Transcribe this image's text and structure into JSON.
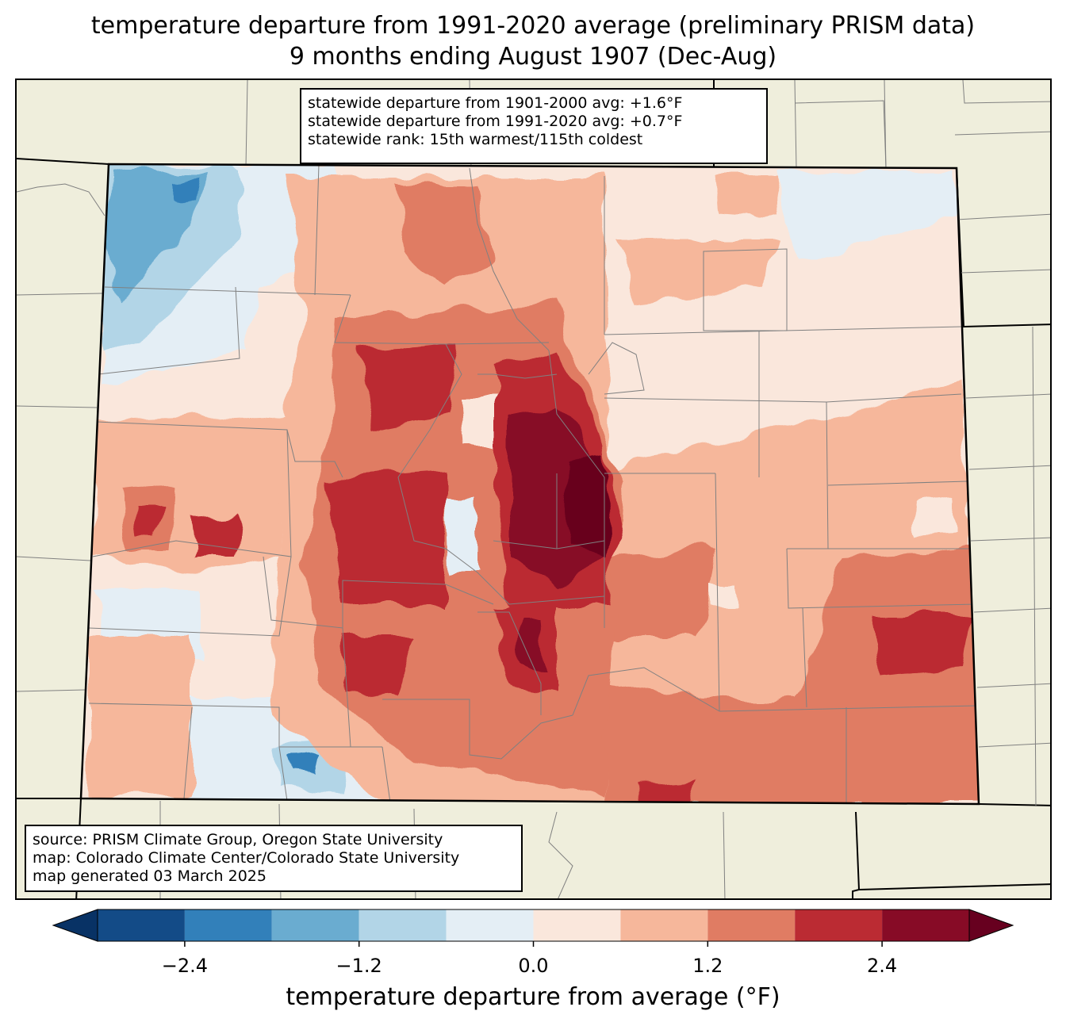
{
  "title": {
    "line1": "temperature departure from 1991-2020 average (preliminary PRISM data)",
    "line2": "9 months ending August 1907 (Dec-Aug)"
  },
  "stats": {
    "line1": "statewide departure from 1901-2000 avg: +1.6°F",
    "line2": "statewide departure from 1991-2020 avg: +0.7°F",
    "line3": "statewide rank: 15th warmest/115th coldest"
  },
  "source": {
    "line1": "source: PRISM Climate Group, Oregon State University",
    "line2": "map: Colorado Climate Center/Colorado State University",
    "line3": "map generated 03 March 2025"
  },
  "colorbar": {
    "label": "temperature departure from average (°F)",
    "bins": [
      -3.0,
      -2.4,
      -1.8,
      -1.2,
      -0.6,
      0.0,
      0.6,
      1.2,
      1.8,
      2.4,
      3.0
    ],
    "colors": [
      "#134b87",
      "#3280ba",
      "#6aacd0",
      "#b2d5e7",
      "#e4eef5",
      "#fae7dc",
      "#f6b79b",
      "#e07c63",
      "#bb2b33",
      "#870b26"
    ],
    "under_color": "#083265",
    "over_color": "#67001f",
    "tick_values": [
      -2.4,
      -1.2,
      0.0,
      1.2,
      2.4
    ],
    "tick_labels": [
      "−2.4",
      "−1.2",
      "0.0",
      "1.2",
      "2.4"
    ]
  },
  "map": {
    "region": "Colorado",
    "land_color": "#efeedc",
    "county_line_color": "#808080",
    "state_line_color": "#000000"
  }
}
